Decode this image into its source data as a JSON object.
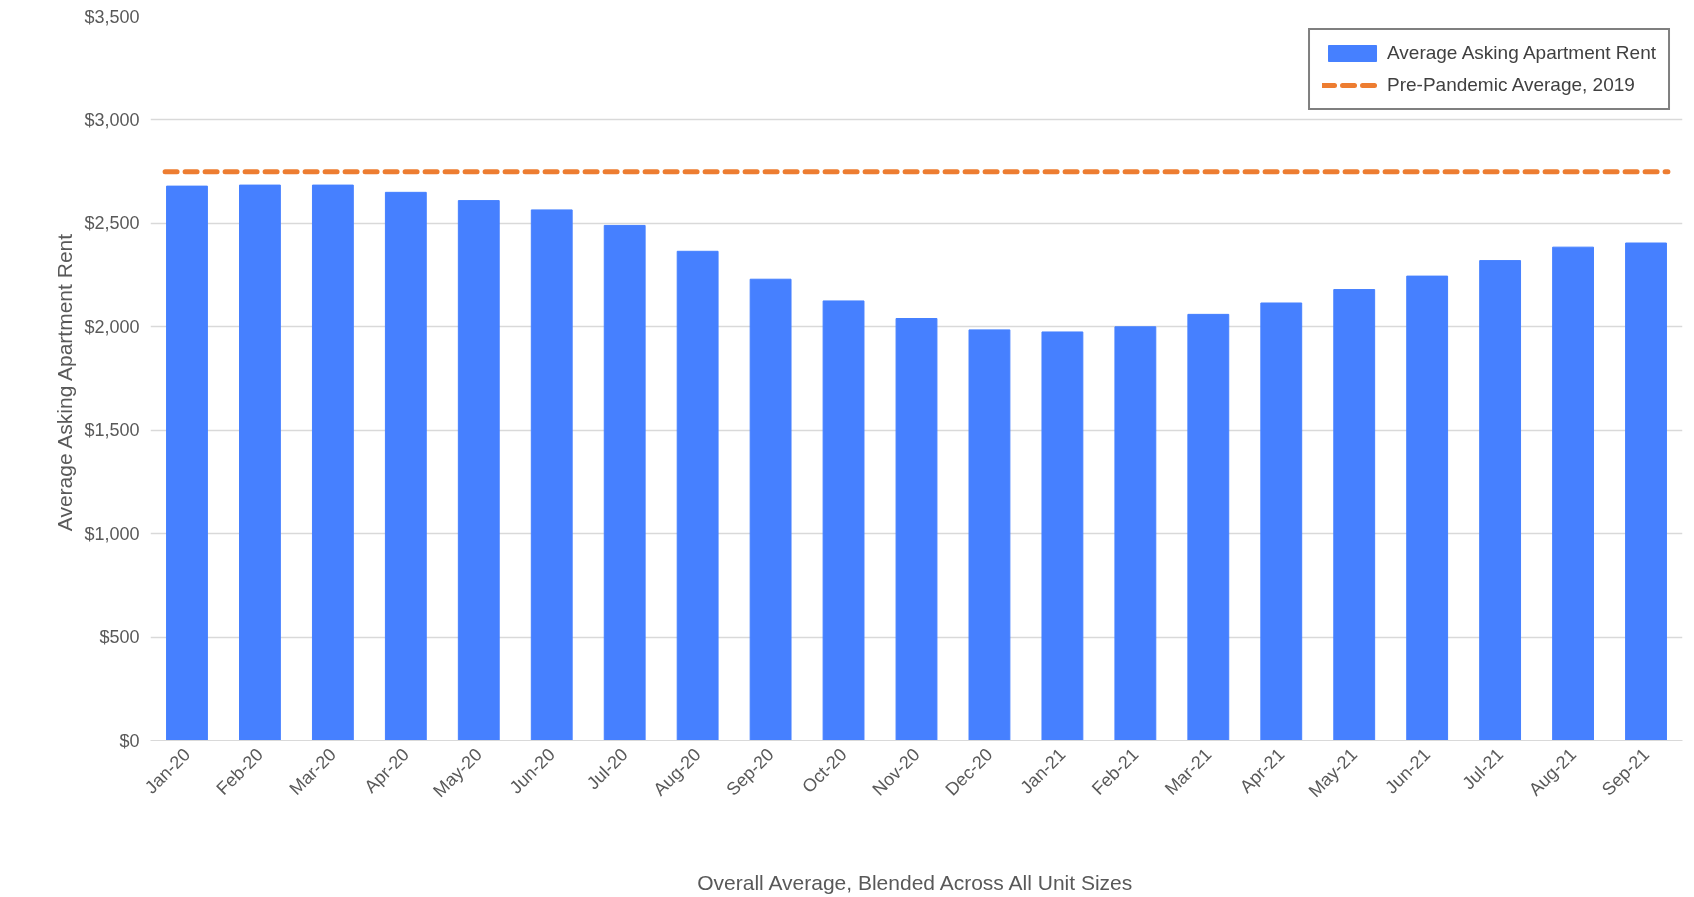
{
  "chart_data": {
    "type": "bar",
    "xlabel": "Overall Average, Blended Across All Unit Sizes",
    "ylabel": "Average Asking Apartment  Rent",
    "categories": [
      "Jan-20",
      "Feb-20",
      "Mar-20",
      "Apr-20",
      "May-20",
      "Jun-20",
      "Jul-20",
      "Aug-20",
      "Sep-20",
      "Oct-20",
      "Nov-20",
      "Dec-20",
      "Jan-21",
      "Feb-21",
      "Mar-21",
      "Apr-21",
      "May-21",
      "Jun-21",
      "Jul-21",
      "Aug-21",
      "Sep-21"
    ],
    "series": [
      {
        "name": "Average Asking Apartment Rent",
        "color": "#4680ff",
        "values": [
          2680,
          2685,
          2685,
          2650,
          2610,
          2565,
          2490,
          2365,
          2230,
          2125,
          2040,
          1985,
          1975,
          2000,
          2060,
          2115,
          2180,
          2245,
          2320,
          2385,
          2405
        ]
      }
    ],
    "ref_lines": [
      {
        "axis": "y",
        "value": 2750,
        "label": "Pre-Pandemic Average, 2019",
        "color": "#ed7d31",
        "line_style": "dashed"
      }
    ],
    "ylim": [
      0,
      3500
    ],
    "yticks": [
      {
        "value": 0,
        "label": "$0"
      },
      {
        "value": 500,
        "label": "$500"
      },
      {
        "value": 1000,
        "label": "$1,000"
      },
      {
        "value": 1500,
        "label": "$1,500"
      },
      {
        "value": 2000,
        "label": "$2,000"
      },
      {
        "value": 2500,
        "label": "$2,500"
      },
      {
        "value": 3000,
        "label": "$3,000"
      },
      {
        "value": 3500,
        "label": "$3,500"
      }
    ],
    "grid": "y",
    "legend": "top right"
  }
}
